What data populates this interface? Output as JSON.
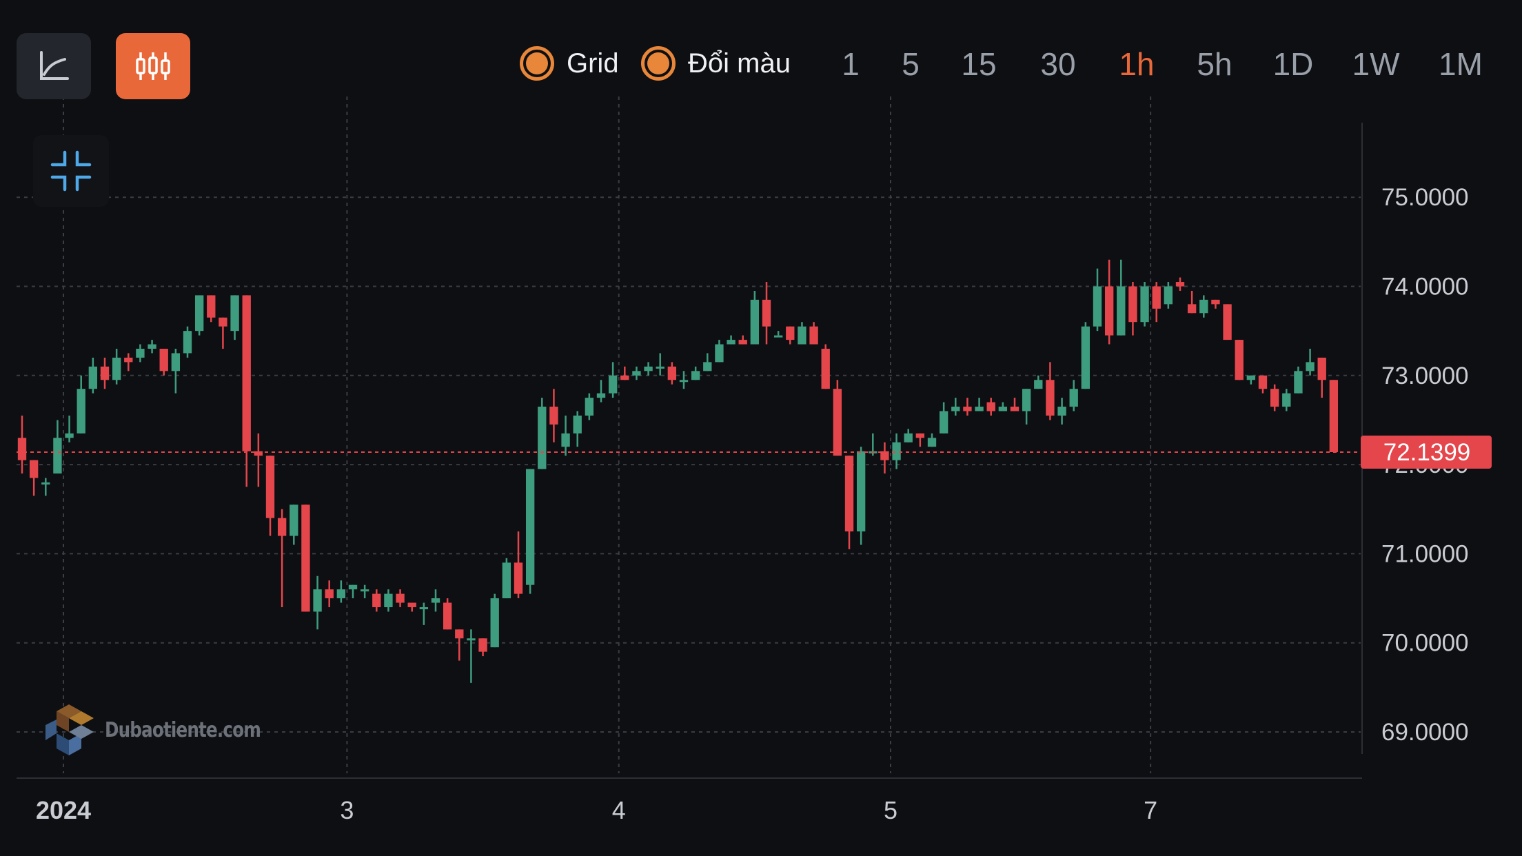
{
  "toolbar": {
    "line_chart_icon": "line-chart-icon",
    "candle_chart_icon": "candlestick-icon",
    "toggles": [
      {
        "label": "Grid",
        "checked": true
      },
      {
        "label": "Đổi màu",
        "checked": true
      }
    ],
    "intervals": [
      "1",
      "5",
      "15",
      "30",
      "1h",
      "5h",
      "1D",
      "1W",
      "1M"
    ],
    "active_interval": "1h"
  },
  "watermark": "Dubaotiente.com",
  "colors": {
    "up": "#3f9d7f",
    "down": "#e5464c",
    "accent": "#e8683a",
    "background": "#0e0f12"
  },
  "chart_data": {
    "type": "candlestick",
    "y_ticks": [
      "69.0000",
      "70.0000",
      "71.0000",
      "72.0000",
      "73.0000",
      "74.0000",
      "75.0000"
    ],
    "ylim": [
      68.6,
      75.5
    ],
    "x_ticks": [
      {
        "label": "2024",
        "x": 3.5,
        "bold": true
      },
      {
        "label": "3",
        "x": 27.5
      },
      {
        "label": "4",
        "x": 50.5
      },
      {
        "label": "5",
        "x": 73.5
      },
      {
        "label": "7",
        "x": 95.5
      }
    ],
    "grid": true,
    "current_price": "72.1399",
    "current_value": 72.1399,
    "candles": [
      [
        72.3,
        72.05,
        72.55,
        71.9
      ],
      [
        72.05,
        71.85,
        72.05,
        71.65
      ],
      [
        71.8,
        71.8,
        71.85,
        71.65
      ],
      [
        71.9,
        72.3,
        72.5,
        71.9
      ],
      [
        72.3,
        72.35,
        72.55,
        72.25
      ],
      [
        72.35,
        72.85,
        73.0,
        72.35
      ],
      [
        72.85,
        73.1,
        73.2,
        72.8
      ],
      [
        73.1,
        72.95,
        73.2,
        72.85
      ],
      [
        72.95,
        73.2,
        73.3,
        72.9
      ],
      [
        73.2,
        73.15,
        73.25,
        73.05
      ],
      [
        73.2,
        73.3,
        73.35,
        73.15
      ],
      [
        73.3,
        73.35,
        73.4,
        73.25
      ],
      [
        73.3,
        73.05,
        73.3,
        73.0
      ],
      [
        73.05,
        73.25,
        73.3,
        72.8
      ],
      [
        73.25,
        73.5,
        73.55,
        73.2
      ],
      [
        73.5,
        73.9,
        73.9,
        73.45
      ],
      [
        73.9,
        73.65,
        73.9,
        73.6
      ],
      [
        73.65,
        73.55,
        73.65,
        73.3
      ],
      [
        73.5,
        73.9,
        73.9,
        73.4
      ],
      [
        73.9,
        72.15,
        73.9,
        71.75
      ],
      [
        72.15,
        72.1,
        72.35,
        71.75
      ],
      [
        72.1,
        71.4,
        72.1,
        71.2
      ],
      [
        71.4,
        71.2,
        71.5,
        70.4
      ],
      [
        71.2,
        71.55,
        71.55,
        71.1
      ],
      [
        71.55,
        70.35,
        71.55,
        70.35
      ],
      [
        70.35,
        70.6,
        70.75,
        70.15
      ],
      [
        70.6,
        70.5,
        70.7,
        70.4
      ],
      [
        70.5,
        70.6,
        70.7,
        70.45
      ],
      [
        70.6,
        70.65,
        70.65,
        70.5
      ],
      [
        70.6,
        70.6,
        70.65,
        70.5
      ],
      [
        70.55,
        70.4,
        70.6,
        70.35
      ],
      [
        70.4,
        70.55,
        70.6,
        70.35
      ],
      [
        70.55,
        70.45,
        70.6,
        70.4
      ],
      [
        70.45,
        70.4,
        70.45,
        70.35
      ],
      [
        70.4,
        70.4,
        70.45,
        70.2
      ],
      [
        70.45,
        70.5,
        70.6,
        70.35
      ],
      [
        70.45,
        70.15,
        70.5,
        70.15
      ],
      [
        70.15,
        70.05,
        70.15,
        69.8
      ],
      [
        70.05,
        70.05,
        70.15,
        69.55
      ],
      [
        70.05,
        69.9,
        70.05,
        69.85
      ],
      [
        69.95,
        70.5,
        70.55,
        69.95
      ],
      [
        70.5,
        70.9,
        70.95,
        70.5
      ],
      [
        70.9,
        70.55,
        71.25,
        70.5
      ],
      [
        70.65,
        71.95,
        71.95,
        70.55
      ],
      [
        71.95,
        72.65,
        72.75,
        71.95
      ],
      [
        72.65,
        72.45,
        72.85,
        72.25
      ],
      [
        72.2,
        72.35,
        72.55,
        72.1
      ],
      [
        72.35,
        72.55,
        72.6,
        72.2
      ],
      [
        72.55,
        72.75,
        72.8,
        72.5
      ],
      [
        72.75,
        72.8,
        72.95,
        72.7
      ],
      [
        72.8,
        73.0,
        73.15,
        72.75
      ],
      [
        73.0,
        72.95,
        73.1,
        72.95
      ],
      [
        73.0,
        73.05,
        73.1,
        72.95
      ],
      [
        73.05,
        73.1,
        73.15,
        73.0
      ],
      [
        73.1,
        73.1,
        73.25,
        73.0
      ],
      [
        73.1,
        72.95,
        73.15,
        72.9
      ],
      [
        72.95,
        72.95,
        73.05,
        72.85
      ],
      [
        72.95,
        73.05,
        73.1,
        72.95
      ],
      [
        73.05,
        73.15,
        73.25,
        73.05
      ],
      [
        73.15,
        73.35,
        73.4,
        73.15
      ],
      [
        73.35,
        73.4,
        73.45,
        73.35
      ],
      [
        73.4,
        73.35,
        73.45,
        73.35
      ],
      [
        73.35,
        73.85,
        73.95,
        73.35
      ],
      [
        73.85,
        73.55,
        74.05,
        73.35
      ],
      [
        73.45,
        73.45,
        73.5,
        73.45
      ],
      [
        73.55,
        73.4,
        73.55,
        73.35
      ],
      [
        73.35,
        73.55,
        73.6,
        73.35
      ],
      [
        73.55,
        73.35,
        73.6,
        73.35
      ],
      [
        73.3,
        72.85,
        73.35,
        72.85
      ],
      [
        72.85,
        72.1,
        72.95,
        72.1
      ],
      [
        72.1,
        71.25,
        72.1,
        71.05
      ],
      [
        71.25,
        72.15,
        72.2,
        71.1
      ],
      [
        72.15,
        72.15,
        72.35,
        72.1
      ],
      [
        72.15,
        72.05,
        72.25,
        71.9
      ],
      [
        72.05,
        72.25,
        72.35,
        71.95
      ],
      [
        72.25,
        72.35,
        72.4,
        72.25
      ],
      [
        72.35,
        72.3,
        72.35,
        72.2
      ],
      [
        72.2,
        72.3,
        72.35,
        72.2
      ],
      [
        72.35,
        72.6,
        72.7,
        72.35
      ],
      [
        72.6,
        72.65,
        72.75,
        72.55
      ],
      [
        72.65,
        72.6,
        72.75,
        72.55
      ],
      [
        72.6,
        72.65,
        72.75,
        72.6
      ],
      [
        72.7,
        72.6,
        72.75,
        72.55
      ],
      [
        72.6,
        72.65,
        72.7,
        72.6
      ],
      [
        72.65,
        72.6,
        72.75,
        72.6
      ],
      [
        72.6,
        72.85,
        72.85,
        72.45
      ],
      [
        72.85,
        72.95,
        73.0,
        72.85
      ],
      [
        72.95,
        72.55,
        73.15,
        72.5
      ],
      [
        72.55,
        72.65,
        72.75,
        72.45
      ],
      [
        72.65,
        72.85,
        72.95,
        72.6
      ],
      [
        72.85,
        73.55,
        73.6,
        72.85
      ],
      [
        73.55,
        74.0,
        74.2,
        73.5
      ],
      [
        74.0,
        73.45,
        74.3,
        73.35
      ],
      [
        73.45,
        74.0,
        74.3,
        73.45
      ],
      [
        74.0,
        73.6,
        74.05,
        73.45
      ],
      [
        73.6,
        74.0,
        74.05,
        73.55
      ],
      [
        74.0,
        73.75,
        74.05,
        73.6
      ],
      [
        73.8,
        74.0,
        74.05,
        73.75
      ],
      [
        74.05,
        74.0,
        74.1,
        73.95
      ],
      [
        73.8,
        73.7,
        73.95,
        73.7
      ],
      [
        73.7,
        73.85,
        73.9,
        73.65
      ],
      [
        73.85,
        73.8,
        73.85,
        73.75
      ],
      [
        73.8,
        73.4,
        73.8,
        73.4
      ],
      [
        73.4,
        72.95,
        73.4,
        72.95
      ],
      [
        72.95,
        73.0,
        73.0,
        72.9
      ],
      [
        73.0,
        72.85,
        73.0,
        72.8
      ],
      [
        72.85,
        72.65,
        72.9,
        72.6
      ],
      [
        72.65,
        72.8,
        72.85,
        72.6
      ],
      [
        72.8,
        73.05,
        73.1,
        72.8
      ],
      [
        73.05,
        73.15,
        73.3,
        73.0
      ],
      [
        73.2,
        72.95,
        73.2,
        72.75
      ],
      [
        72.95,
        72.14,
        72.95,
        72.14
      ]
    ]
  }
}
